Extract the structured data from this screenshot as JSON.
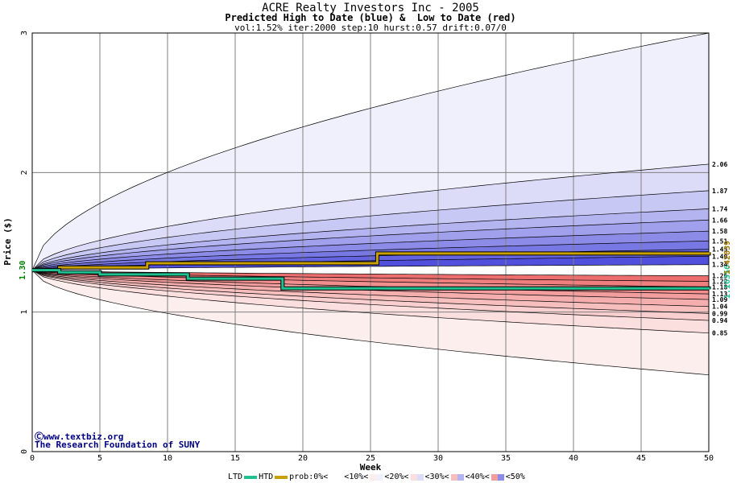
{
  "titles": {
    "main": "ACRE Realty Investors Inc - 2005",
    "sub": "Predicted High to Date (blue) &  Low to Date (red)",
    "params": "vol:1.52% iter:2000 step:10 hurst:0.57 drift:0.07/0"
  },
  "credits": {
    "line1": "Ⓒwww.textbiz.org",
    "line2": "The Research Foundation of SUNY"
  },
  "legend": {
    "ltd": "LTD",
    "htd": "HTD",
    "prob": "prob:0%<",
    "p10": "<10%<",
    "p20": "<20%<",
    "p30": "<30%<",
    "p40": "<40%<",
    "p50": "<50%"
  },
  "colors": {
    "htd": "#c8a000",
    "ltd": "#20c090",
    "blue_label": "#008000",
    "gold_label": "#a07800"
  },
  "chart_data": {
    "type": "area",
    "xlabel": "Week",
    "ylabel": "Price ($)",
    "xlim": [
      0,
      50
    ],
    "ylim": [
      0,
      3
    ],
    "x_ticks": [
      0,
      5,
      10,
      15,
      20,
      25,
      30,
      35,
      40,
      45,
      50
    ],
    "y_ticks": [
      0,
      1,
      2,
      3
    ],
    "start_price": 1.3,
    "start_label": "1.30",
    "htd_end_label": "1.42839",
    "ltd_end_label": "1.16356",
    "band_end_values": [
      2.06,
      1.87,
      1.74,
      1.66,
      1.58,
      1.51,
      1.45,
      1.4,
      1.34,
      1.26,
      1.22,
      1.18,
      1.13,
      1.09,
      1.04,
      0.99,
      0.94,
      0.85
    ],
    "band_end_labels": [
      "2.06",
      "1.87",
      "1.74",
      "1.66",
      "1.58",
      "1.51",
      "1.45",
      "1.40",
      "1.34",
      "1.26",
      "1.22",
      "1.18",
      "1.13",
      "1.09",
      "1.04",
      "0.99",
      "0.94",
      "0.85"
    ],
    "outer_upper_end": 3.0,
    "outer_lower_end": 0.55,
    "upper_fills": [
      "#f0f0fc",
      "#dcdcf8",
      "#c8c8f4",
      "#b4b4f0",
      "#a0a0ec",
      "#8c8ce8",
      "#7878e4",
      "#6464e0",
      "#5050dc"
    ],
    "lower_fills": [
      "#fdeeee",
      "#fbdede",
      "#f9cece",
      "#f7bebe",
      "#f5aeae",
      "#f39e9e",
      "#f18e8e",
      "#ef7e7e",
      "#ed6e6e"
    ],
    "htd_steps": [
      {
        "x": 0,
        "y": 1.3
      },
      {
        "x": 2,
        "y": 1.32
      },
      {
        "x": 8.5,
        "y": 1.35
      },
      {
        "x": 25.5,
        "y": 1.42
      },
      {
        "x": 50,
        "y": 1.42839
      }
    ],
    "ltd_steps": [
      {
        "x": 0,
        "y": 1.3
      },
      {
        "x": 2,
        "y": 1.285
      },
      {
        "x": 5,
        "y": 1.27
      },
      {
        "x": 11.5,
        "y": 1.24
      },
      {
        "x": 18.5,
        "y": 1.17
      },
      {
        "x": 50,
        "y": 1.16356
      }
    ]
  }
}
